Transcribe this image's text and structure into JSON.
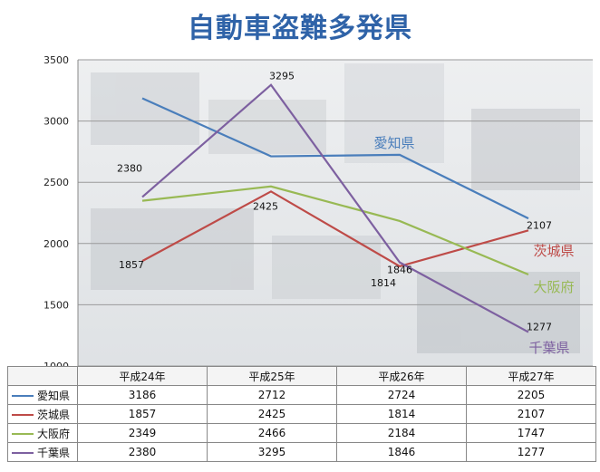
{
  "title": "自動車盗難多発県",
  "chart_data": {
    "type": "line",
    "categories": [
      "平成24年",
      "平成25年",
      "平成26年",
      "平成27年"
    ],
    "ylim": [
      1000,
      3500
    ],
    "yticks": [
      1000,
      1500,
      2000,
      2500,
      3000,
      3500
    ],
    "grid": true,
    "series": [
      {
        "name": "愛知県",
        "color": "#4a7ebb",
        "values": [
          3186,
          2712,
          2724,
          2205
        ]
      },
      {
        "name": "茨城県",
        "color": "#be4b48",
        "values": [
          1857,
          2425,
          1814,
          2107
        ]
      },
      {
        "name": "大阪府",
        "color": "#98b954",
        "values": [
          2349,
          2466,
          2184,
          1747
        ]
      },
      {
        "name": "千葉県",
        "color": "#7d60a0",
        "values": [
          2380,
          3295,
          1846,
          1277
        ]
      }
    ],
    "point_labels": [
      {
        "series": 3,
        "index": 0,
        "text": "2380"
      },
      {
        "series": 3,
        "index": 1,
        "text": "3295"
      },
      {
        "series": 1,
        "index": 0,
        "text": "1857"
      },
      {
        "series": 1,
        "index": 1,
        "text": "2425"
      },
      {
        "series": 3,
        "index": 2,
        "text": "1846"
      },
      {
        "series": 1,
        "index": 2,
        "text": "1814"
      },
      {
        "series": 1,
        "index": 3,
        "text": "2107"
      },
      {
        "series": 3,
        "index": 3,
        "text": "1277"
      }
    ],
    "series_labels": [
      {
        "series": 0,
        "text": "愛知県"
      },
      {
        "series": 1,
        "text": "茨城県"
      },
      {
        "series": 2,
        "text": "大阪府"
      },
      {
        "series": 3,
        "text": "千葉県"
      }
    ]
  }
}
